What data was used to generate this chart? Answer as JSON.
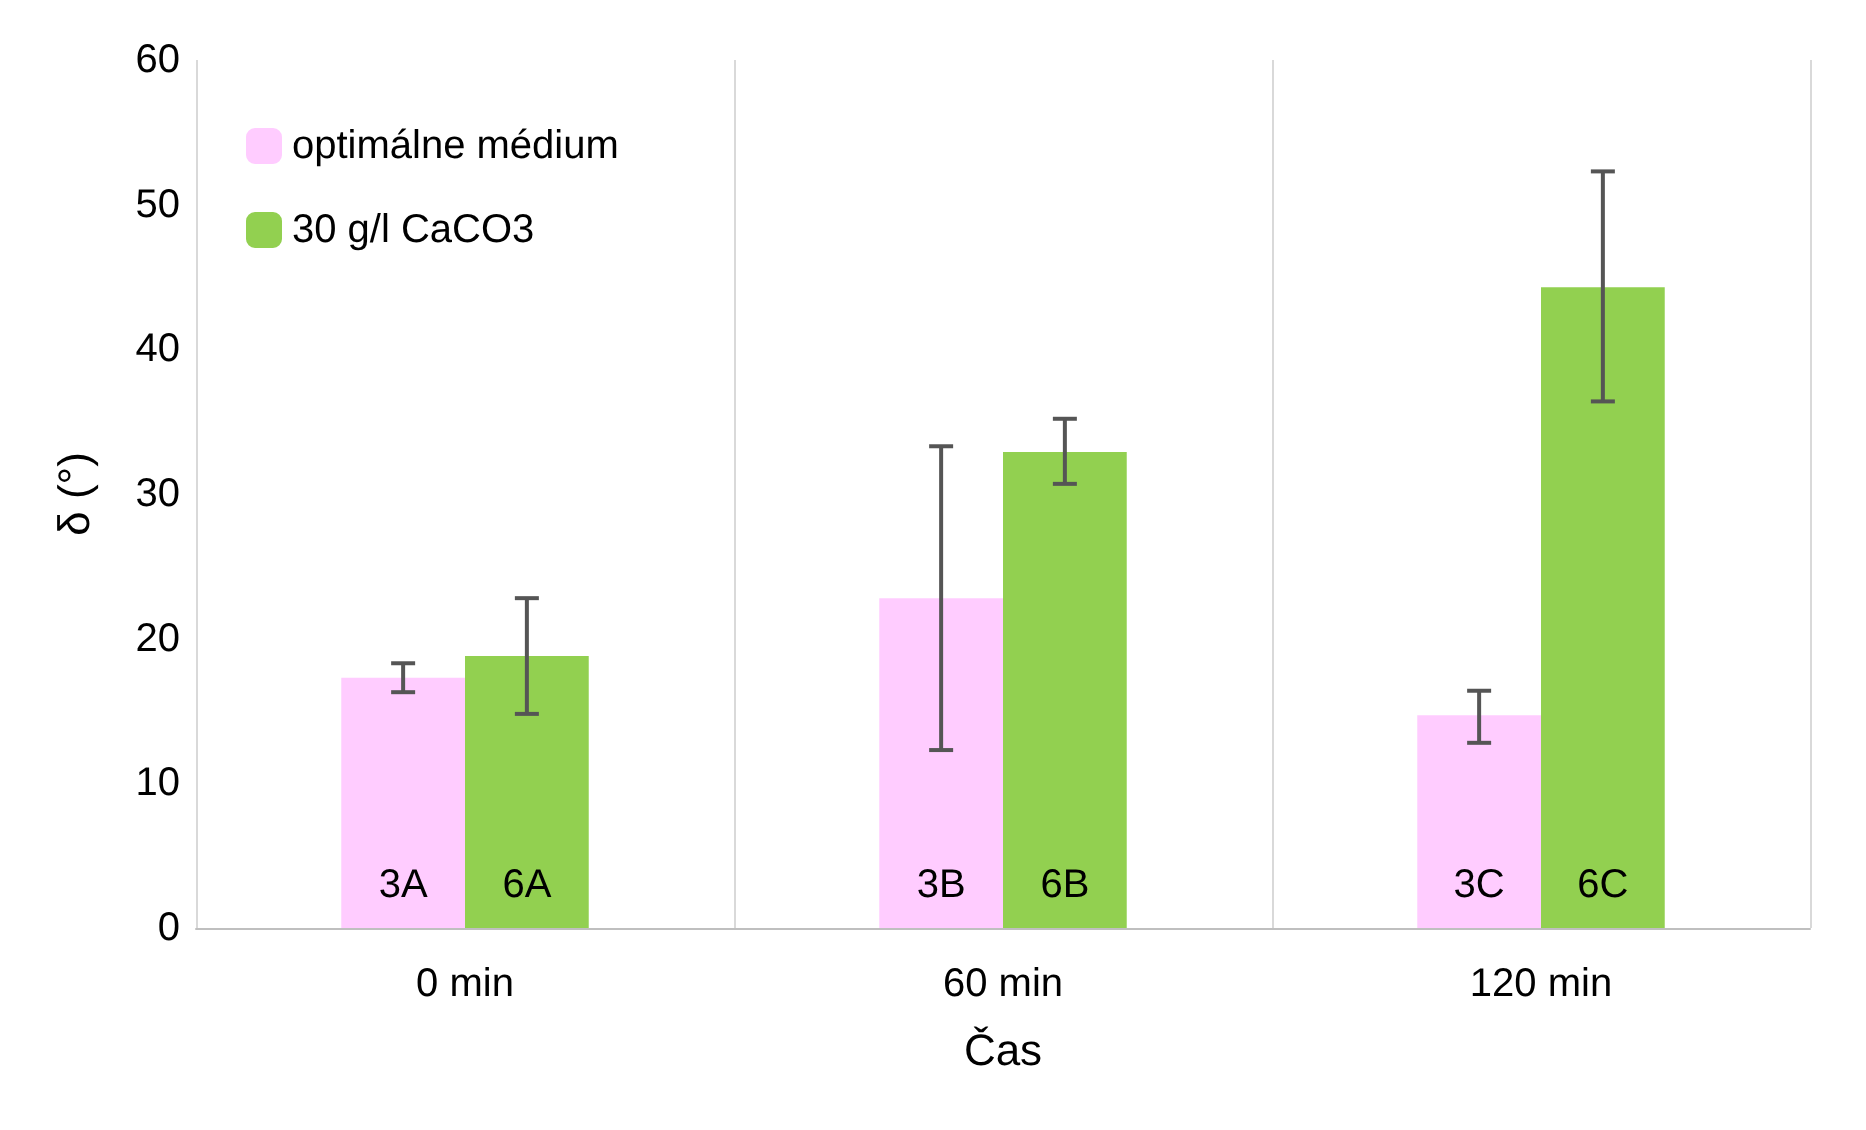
{
  "chart_data": {
    "type": "bar",
    "xlabel": "Čas",
    "ylabel": "δ (°)",
    "categories": [
      "0 min",
      "60 min",
      "120 min"
    ],
    "series": [
      {
        "name": "optimálne médium",
        "color": "#ffccff",
        "values": [
          17.3,
          22.8,
          14.7
        ],
        "errors": [
          [
            16.3,
            18.3
          ],
          [
            12.3,
            33.3
          ],
          [
            12.8,
            16.4
          ]
        ]
      },
      {
        "name": "30 g/l CaCO3",
        "color": "#92d050",
        "values": [
          18.8,
          32.9,
          44.3
        ],
        "errors": [
          [
            14.8,
            22.8
          ],
          [
            30.7,
            35.2
          ],
          [
            36.4,
            52.3
          ]
        ]
      }
    ],
    "annotations": [
      {
        "text": "3A",
        "x": "0 min",
        "y": 3
      },
      {
        "text": "6A",
        "x": "0 min",
        "y": 3
      },
      {
        "text": "3B",
        "x": "60 min",
        "y": 3
      },
      {
        "text": "6B",
        "x": "60 min",
        "y": 3
      },
      {
        "text": "3C",
        "x": "120 min",
        "y": 3
      },
      {
        "text": "6C",
        "x": "120 min",
        "y": 3
      }
    ],
    "ylim": [
      0,
      60
    ],
    "yticks": [
      0,
      10,
      20,
      30,
      40,
      50,
      60
    ],
    "grid": "x",
    "legend": "top left"
  }
}
